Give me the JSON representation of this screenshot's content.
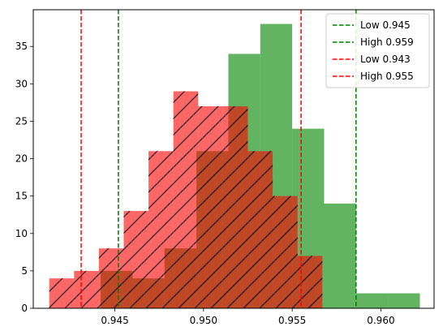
{
  "chart_data": {
    "type": "histogram",
    "title": "",
    "xlabel": "",
    "ylabel": "",
    "xlim": [
      0.9404,
      0.963
    ],
    "ylim": [
      0,
      39.9
    ],
    "grid": false,
    "legend_position": "top-right",
    "x_ticks": [
      {
        "value": 0.945,
        "label": "0.945"
      },
      {
        "value": 0.95,
        "label": "0.950"
      },
      {
        "value": 0.955,
        "label": "0.955"
      },
      {
        "value": 0.96,
        "label": "0.960"
      }
    ],
    "y_ticks": [
      {
        "value": 0,
        "label": "0"
      },
      {
        "value": 5,
        "label": "5"
      },
      {
        "value": 10,
        "label": "10"
      },
      {
        "value": 15,
        "label": "15"
      },
      {
        "value": 20,
        "label": "20"
      },
      {
        "value": 25,
        "label": "25"
      },
      {
        "value": 30,
        "label": "30"
      },
      {
        "value": 35,
        "label": "35"
      }
    ],
    "histograms": [
      {
        "color": "#2e9a2e",
        "opacity": 0.75,
        "hatch": false,
        "bins": [
          {
            "x0": 0.9442,
            "x1": 0.946,
            "count": 5
          },
          {
            "x0": 0.946,
            "x1": 0.9478,
            "count": 4
          },
          {
            "x0": 0.9478,
            "x1": 0.9496,
            "count": 8
          },
          {
            "x0": 0.9496,
            "x1": 0.9514,
            "count": 21
          },
          {
            "x0": 0.9514,
            "x1": 0.9532,
            "count": 34
          },
          {
            "x0": 0.9532,
            "x1": 0.955,
            "count": 38
          },
          {
            "x0": 0.955,
            "x1": 0.9568,
            "count": 24
          },
          {
            "x0": 0.9568,
            "x1": 0.9586,
            "count": 14
          },
          {
            "x0": 0.9586,
            "x1": 0.9604,
            "count": 2
          },
          {
            "x0": 0.9604,
            "x1": 0.9622,
            "count": 2
          }
        ]
      },
      {
        "color": "#ff0000",
        "opacity": 0.6,
        "hatch": true,
        "bins": [
          {
            "x0": 0.9413,
            "x1": 0.9427,
            "count": 4
          },
          {
            "x0": 0.9427,
            "x1": 0.9441,
            "count": 5
          },
          {
            "x0": 0.9441,
            "x1": 0.9455,
            "count": 8
          },
          {
            "x0": 0.9455,
            "x1": 0.9469,
            "count": 13
          },
          {
            "x0": 0.9469,
            "x1": 0.9483,
            "count": 21
          },
          {
            "x0": 0.9483,
            "x1": 0.9497,
            "count": 29
          },
          {
            "x0": 0.9497,
            "x1": 0.9511,
            "count": 27
          },
          {
            "x0": 0.9511,
            "x1": 0.9525,
            "count": 27
          },
          {
            "x0": 0.9525,
            "x1": 0.9539,
            "count": 21
          },
          {
            "x0": 0.9539,
            "x1": 0.9553,
            "count": 15
          },
          {
            "x0": 0.9553,
            "x1": 0.9567,
            "count": 7
          }
        ]
      }
    ],
    "lines": [
      {
        "label": "Low 0.945",
        "x": 0.9452,
        "color": "#008000"
      },
      {
        "label": "High 0.959",
        "x": 0.9586,
        "color": "#008000"
      },
      {
        "label": "Low 0.943",
        "x": 0.9431,
        "color": "#ff0000"
      },
      {
        "label": "High 0.955",
        "x": 0.9555,
        "color": "#ff0000"
      }
    ]
  }
}
